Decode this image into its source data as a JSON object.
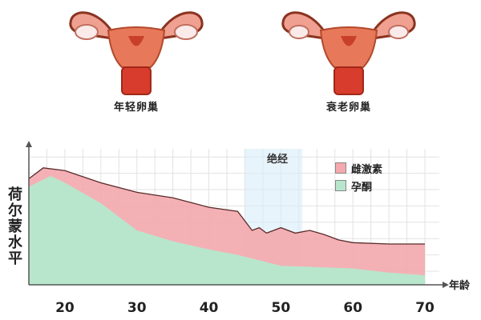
{
  "illustrations": [
    {
      "caption": "年轻卵巢",
      "icon": "uterus-ovaries-icon"
    },
    {
      "caption": "衰老卵巢",
      "icon": "uterus-ovaries-icon"
    }
  ],
  "chart_data": {
    "type": "area",
    "ylabel": "荷尔蒙水平",
    "xlabel": "年龄",
    "xlim": [
      15,
      72
    ],
    "x_ticks": [
      20,
      30,
      40,
      50,
      60,
      70
    ],
    "ylim": [
      0,
      100
    ],
    "grid": true,
    "legend_position": "top-right",
    "menopause_band": {
      "label": "绝经",
      "x_range": [
        45,
        53
      ]
    },
    "series": [
      {
        "name": "雌激素",
        "color": "#f3a9ad",
        "points": [
          [
            15,
            78
          ],
          [
            17,
            86
          ],
          [
            20,
            84
          ],
          [
            25,
            75
          ],
          [
            30,
            68
          ],
          [
            35,
            64
          ],
          [
            40,
            57
          ],
          [
            44,
            54
          ],
          [
            45,
            47
          ],
          [
            46,
            40
          ],
          [
            47,
            42
          ],
          [
            48,
            38
          ],
          [
            50,
            42
          ],
          [
            52,
            38
          ],
          [
            54,
            40
          ],
          [
            56,
            37
          ],
          [
            58,
            33
          ],
          [
            60,
            31
          ],
          [
            65,
            30
          ],
          [
            70,
            30
          ]
        ]
      },
      {
        "name": "孕酮",
        "color": "#b8e6cc",
        "points": [
          [
            15,
            72
          ],
          [
            18,
            80
          ],
          [
            20,
            75
          ],
          [
            25,
            60
          ],
          [
            30,
            40
          ],
          [
            35,
            32
          ],
          [
            40,
            26
          ],
          [
            44,
            22
          ],
          [
            50,
            14
          ],
          [
            55,
            13
          ],
          [
            60,
            12
          ],
          [
            65,
            9
          ],
          [
            70,
            7
          ]
        ]
      }
    ]
  }
}
